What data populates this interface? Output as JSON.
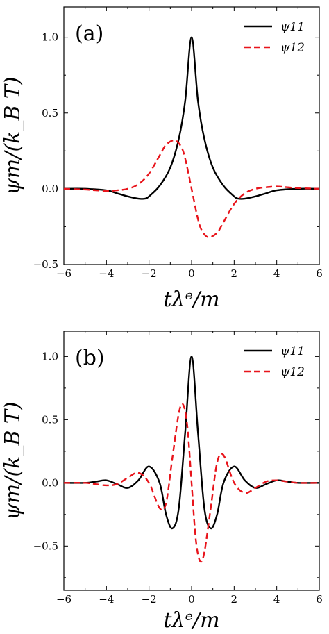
{
  "chart_data": [
    {
      "type": "line",
      "panel_label": "(a)",
      "xlabel": "tλᵉ/m",
      "ylabel": "ψm/(k_B T)",
      "xlim": [
        -6,
        6
      ],
      "ylim": [
        -0.5,
        1.2
      ],
      "xticks": [
        -6,
        -4,
        -2,
        0,
        2,
        4,
        6
      ],
      "xtick_labels": [
        "−6",
        "−4",
        "−2",
        "0",
        "2",
        "4",
        "6"
      ],
      "yticks": [
        -0.5,
        0.0,
        0.5,
        1.0
      ],
      "ytick_labels": [
        "−0.5",
        "0.0",
        "0.5",
        "1.0"
      ],
      "legend_position": "top-right",
      "series": [
        {
          "name": "ψ11",
          "style": "solid",
          "color": "#000000",
          "x": [
            -6,
            -5,
            -4,
            -3.5,
            -3,
            -2.5,
            -2.2,
            -2,
            -1.5,
            -1,
            -0.6,
            -0.3,
            0,
            0.3,
            0.6,
            1,
            1.5,
            2,
            2.2,
            2.5,
            3,
            3.5,
            4,
            5,
            6
          ],
          "y": [
            0.0,
            0.0,
            -0.01,
            -0.03,
            -0.05,
            -0.065,
            -0.065,
            -0.05,
            0.02,
            0.14,
            0.33,
            0.58,
            1.0,
            0.58,
            0.33,
            0.14,
            0.02,
            -0.05,
            -0.065,
            -0.065,
            -0.05,
            -0.03,
            -0.01,
            0.0,
            0.0
          ]
        },
        {
          "name": "ψ12",
          "style": "dashed",
          "color": "#e8141b",
          "x": [
            -6,
            -5,
            -4.5,
            -4,
            -3.5,
            -3,
            -2.5,
            -2,
            -1.5,
            -1.2,
            -0.8,
            -0.5,
            -0.3,
            0,
            0.3,
            0.5,
            0.8,
            1.2,
            1.5,
            2,
            2.5,
            3,
            3.5,
            4,
            4.5,
            5,
            6
          ],
          "y": [
            0.0,
            -0.005,
            -0.01,
            -0.015,
            -0.01,
            0.0,
            0.03,
            0.1,
            0.22,
            0.29,
            0.32,
            0.28,
            0.2,
            0.0,
            -0.2,
            -0.28,
            -0.32,
            -0.29,
            -0.22,
            -0.1,
            -0.03,
            0.0,
            0.01,
            0.015,
            0.01,
            0.005,
            0.0
          ]
        }
      ]
    },
    {
      "type": "line",
      "panel_label": "(b)",
      "xlabel": "tλᵉ/m",
      "ylabel": "ψm/(k_B T)",
      "xlim": [
        -6,
        6
      ],
      "ylim": [
        -0.85,
        1.2
      ],
      "xticks": [
        -6,
        -4,
        -2,
        0,
        2,
        4,
        6
      ],
      "xtick_labels": [
        "−6",
        "−4",
        "−2",
        "0",
        "2",
        "4",
        "6"
      ],
      "yticks": [
        -0.5,
        0.0,
        0.5,
        1.0
      ],
      "ytick_labels": [
        "−0.5",
        "0.0",
        "0.5",
        "1.0"
      ],
      "legend_position": "top-right",
      "series": [
        {
          "name": "ψ11",
          "style": "solid",
          "color": "#000000",
          "x": [
            -6,
            -5,
            -4.5,
            -4,
            -3.5,
            -3,
            -2.5,
            -2,
            -1.5,
            -1.2,
            -0.9,
            -0.6,
            -0.3,
            0,
            0.3,
            0.6,
            0.9,
            1.2,
            1.5,
            2,
            2.5,
            3,
            3.5,
            4,
            4.5,
            5,
            6
          ],
          "y": [
            0.0,
            0.0,
            0.01,
            0.02,
            -0.01,
            -0.04,
            0.02,
            0.13,
            0.0,
            -0.25,
            -0.36,
            -0.2,
            0.4,
            1.0,
            0.4,
            -0.2,
            -0.36,
            -0.25,
            0.0,
            0.13,
            0.02,
            -0.04,
            -0.01,
            0.02,
            0.01,
            0.0,
            0.0
          ]
        },
        {
          "name": "ψ12",
          "style": "dashed",
          "color": "#e8141b",
          "x": [
            -6,
            -5,
            -4.5,
            -4,
            -3.5,
            -3,
            -2.5,
            -2,
            -1.5,
            -1.2,
            -0.9,
            -0.6,
            -0.4,
            -0.2,
            0,
            0.2,
            0.4,
            0.6,
            0.9,
            1.2,
            1.5,
            2,
            2.5,
            3,
            3.5,
            4,
            4.5,
            5,
            6
          ],
          "y": [
            0.0,
            0.0,
            -0.01,
            -0.02,
            -0.01,
            0.04,
            0.08,
            0.0,
            -0.2,
            -0.16,
            0.2,
            0.55,
            0.62,
            0.45,
            0.0,
            -0.45,
            -0.62,
            -0.55,
            -0.2,
            0.16,
            0.22,
            0.0,
            -0.08,
            -0.04,
            0.01,
            0.02,
            0.01,
            0.0,
            0.0
          ]
        }
      ]
    }
  ]
}
